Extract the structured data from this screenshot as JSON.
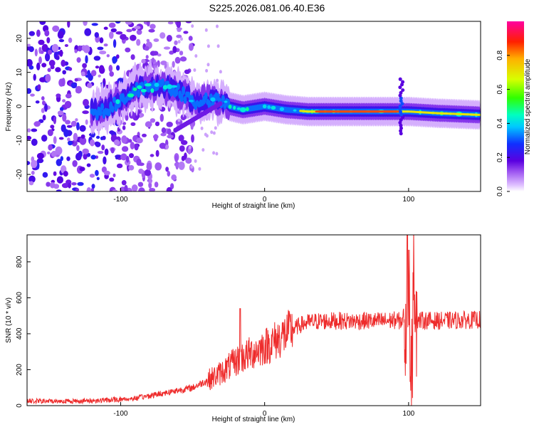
{
  "title": "S225.2026.081.06.40.E36",
  "colors": {
    "snr_line": "#ee2b2b",
    "frame": "#000000",
    "background": "#ffffff"
  },
  "chart_data": [
    {
      "type": "heatmap",
      "name": "spectrogram",
      "xlabel": "Height of straight line (km)",
      "ylabel": "Frequency (Hz)",
      "xlim": [
        -165,
        150
      ],
      "ylim": [
        -25,
        25
      ],
      "xticks": [
        -100,
        0,
        100
      ],
      "yticks": [
        -20,
        -10,
        0,
        10,
        20
      ],
      "xtick_labels": [
        "-100",
        "0",
        "100"
      ],
      "ytick_labels": [
        "-20",
        "-10",
        "0",
        "10",
        "20"
      ],
      "colorbar": {
        "label": "Normalized spectral amplitude",
        "range": [
          0,
          1
        ],
        "ticks": [
          0.0,
          0.2,
          0.4,
          0.6,
          0.8
        ],
        "tick_labels": [
          "0.0",
          "0.2",
          "0.4",
          "0.6",
          "0.8"
        ]
      },
      "ridge": [
        {
          "x": -165,
          "y": -3
        },
        {
          "x": -110,
          "y": -1
        },
        {
          "x": -90,
          "y": 5
        },
        {
          "x": -75,
          "y": 6
        },
        {
          "x": -62,
          "y": 5
        },
        {
          "x": -48,
          "y": 1
        },
        {
          "x": -35,
          "y": 2
        },
        {
          "x": -25,
          "y": 0
        },
        {
          "x": -15,
          "y": -1
        },
        {
          "x": 0,
          "y": 0
        },
        {
          "x": 15,
          "y": -1
        },
        {
          "x": 30,
          "y": -1.5
        },
        {
          "x": 60,
          "y": -1.5
        },
        {
          "x": 90,
          "y": -1.5
        },
        {
          "x": 100,
          "y": -1.5
        },
        {
          "x": 120,
          "y": -2
        },
        {
          "x": 150,
          "y": -2.5
        }
      ]
    },
    {
      "type": "line",
      "name": "snr",
      "xlabel": "Height of straight line (km)",
      "ylabel": "SNR (10 * v/v)",
      "xlim": [
        -165,
        150
      ],
      "ylim": [
        0,
        950
      ],
      "xticks": [
        -100,
        0,
        100
      ],
      "yticks": [
        0,
        200,
        400,
        600,
        800
      ],
      "xtick_labels": [
        "-100",
        "0",
        "100"
      ],
      "ytick_labels": [
        "0",
        "200",
        "400",
        "600",
        "800"
      ],
      "series": [
        {
          "name": "SNR",
          "x": [
            -165,
            -150,
            -130,
            -110,
            -90,
            -80,
            -70,
            -60,
            -50,
            -40,
            -35,
            -30,
            -25,
            -20,
            -15,
            -10,
            -5,
            0,
            5,
            10,
            15,
            20,
            25,
            30,
            35,
            40,
            50,
            60,
            70,
            80,
            90,
            95,
            98,
            100,
            102,
            104,
            106,
            110,
            120,
            130,
            140,
            150
          ],
          "values": [
            25,
            25,
            25,
            30,
            40,
            55,
            70,
            85,
            100,
            140,
            160,
            185,
            215,
            245,
            270,
            290,
            310,
            330,
            350,
            375,
            400,
            425,
            450,
            462,
            468,
            470,
            472,
            470,
            472,
            470,
            475,
            470,
            520,
            900,
            120,
            820,
            470,
            475,
            472,
            474,
            476,
            478
          ]
        }
      ]
    }
  ]
}
